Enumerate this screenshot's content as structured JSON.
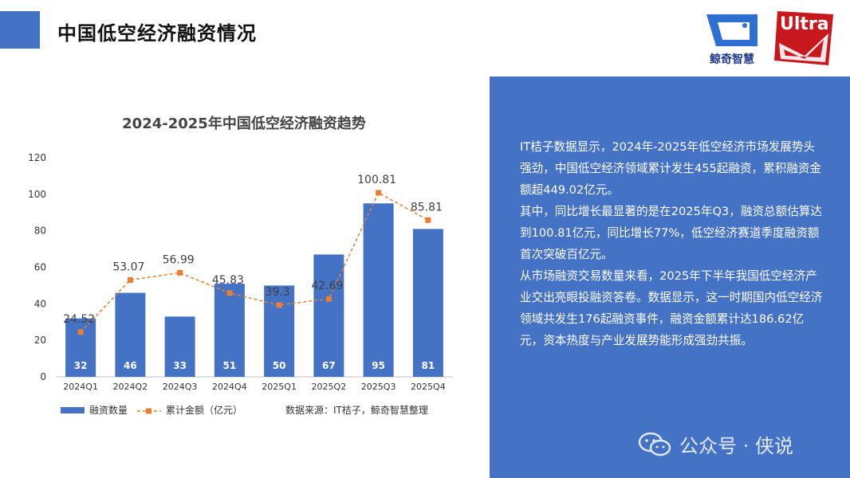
{
  "page": {
    "title": "中国低空经济融资情况"
  },
  "logos": {
    "brand": "鲸奇智慧",
    "ultra": "Ultra"
  },
  "chart_data": {
    "type": "bar",
    "title": "2024-2025年中国低空经济融资趋势",
    "categories": [
      "2024Q1",
      "2024Q2",
      "2024Q3",
      "2024Q4",
      "2025Q1",
      "2025Q2",
      "2025Q3",
      "2025Q4"
    ],
    "series": [
      {
        "name": "融资数量",
        "type": "bar",
        "values": [
          32,
          46,
          33,
          51,
          50,
          67,
          95,
          81
        ],
        "color": "#4472c4"
      },
      {
        "name": "累计金额（亿元）",
        "type": "line",
        "values": [
          24.52,
          53.07,
          56.99,
          45.83,
          39.3,
          42.69,
          100.81,
          85.81
        ],
        "color": "#ed7d31"
      }
    ],
    "ylim": [
      0,
      120
    ],
    "yticks": [
      0,
      20,
      40,
      60,
      80,
      100,
      120
    ],
    "grid": false,
    "legend": "bottom-left",
    "source": "数据来源：IT桔子，鲸奇智慧整理"
  },
  "side": {
    "paragraphs": [
      "IT桔子数据显示，2024年-2025年低空经济市场发展势头强劲，中国低空经济领域累计发生455起融资，累积融资金额超449.02亿元。",
      "其中，同比增长最显著的是在2025年Q3，融资总额估算达到100.81亿元，同比增长77%，低空经济赛道季度融资额首次突破百亿元。",
      "从市场融资交易数量来看，2025年下半年我国低空经济产业交出亮眼投融资答卷。数据显示，这一时期国内低空经济领域共发生176起融资事件，融资金额累计达186.62亿元，资本热度与产业发展势能形成强劲共振。"
    ]
  },
  "watermark": {
    "text": "公众号 · 侠说"
  }
}
